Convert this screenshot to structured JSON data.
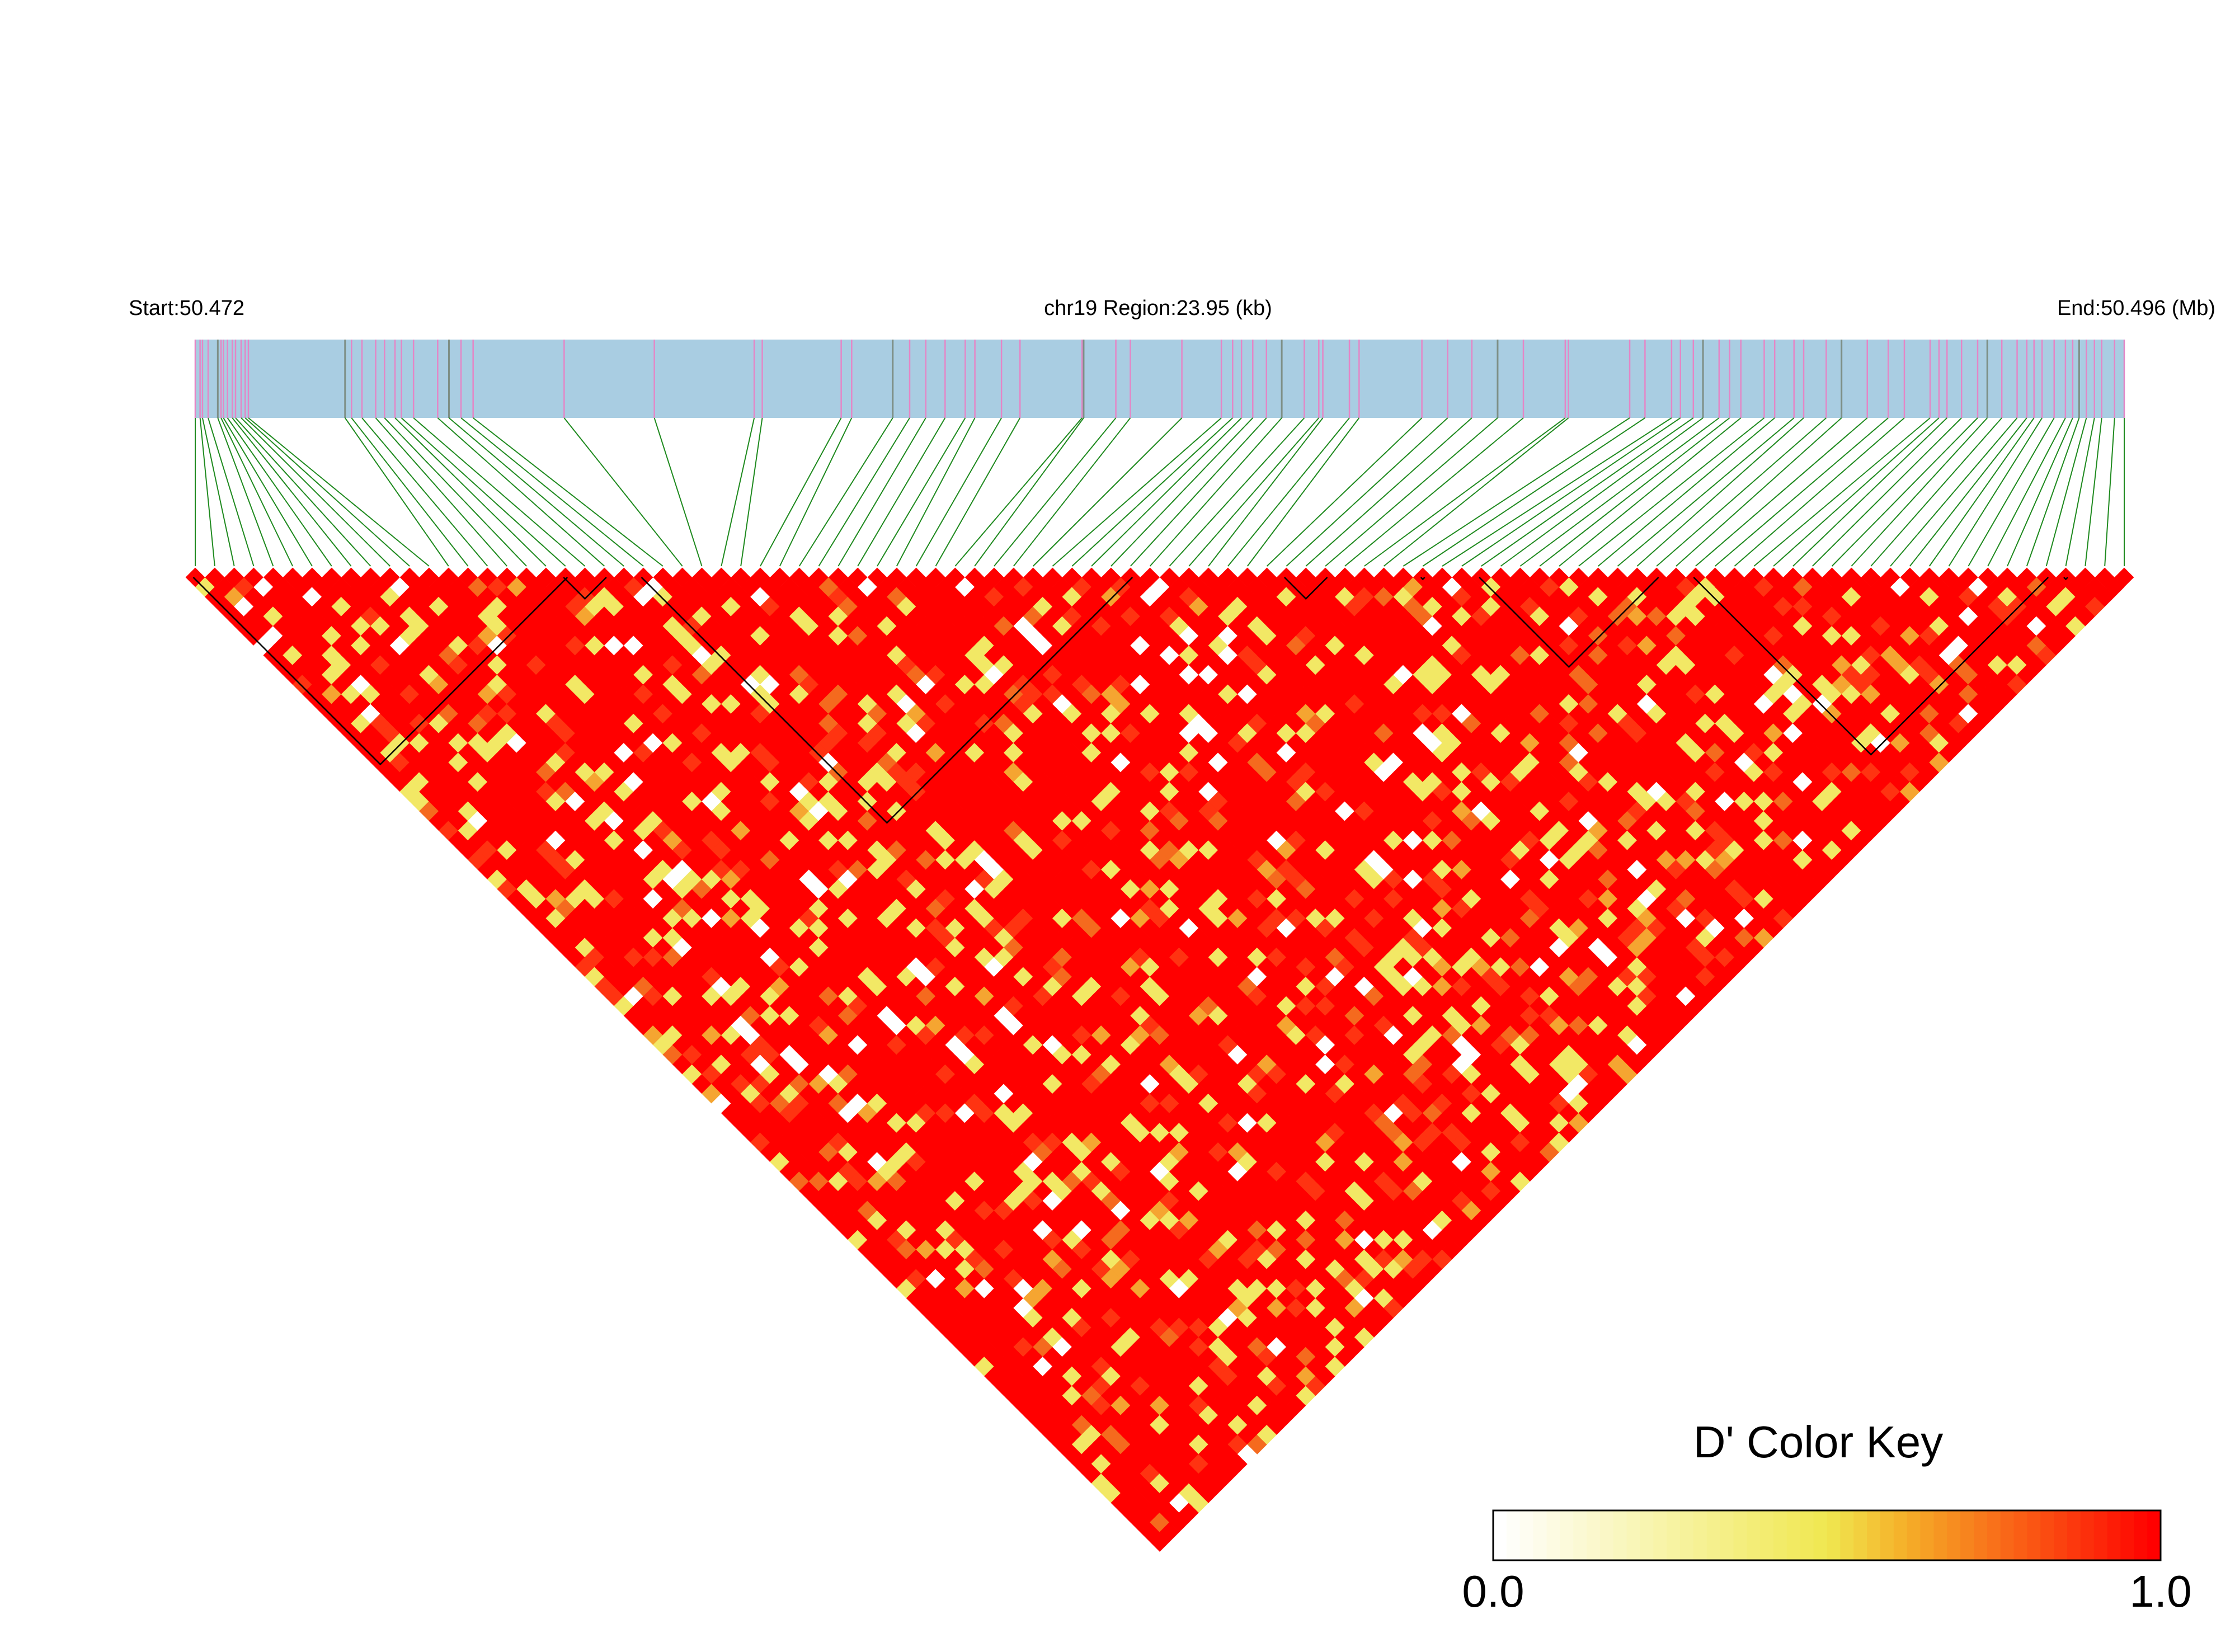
{
  "header": {
    "start_label": "Start:50.472",
    "region_label": "chr19 Region:23.95 (kb)",
    "end_label": "End:50.496 (Mb)"
  },
  "chart_data": {
    "type": "heatmap",
    "subtype": "linkage-disequilibrium-triangle",
    "title": "",
    "chromosome": "chr19",
    "region_start_mb": 50.472,
    "region_end_mb": 50.496,
    "region_length_kb": 23.95,
    "metric": "D'",
    "n_snps": 100,
    "snp_positions_kb": [
      0.0,
      0.06,
      0.09,
      0.16,
      0.28,
      0.32,
      0.35,
      0.4,
      0.46,
      0.5,
      0.57,
      0.62,
      0.66,
      1.86,
      1.94,
      2.07,
      2.24,
      2.35,
      2.48,
      2.56,
      2.71,
      3.01,
      3.15,
      3.3,
      3.45,
      4.58,
      5.7,
      6.94,
      7.04,
      8.02,
      8.15,
      8.66,
      8.87,
      9.07,
      9.31,
      9.56,
      9.68,
      10.01,
      10.24,
      11.01,
      11.03,
      11.43,
      11.61,
      12.25,
      12.74,
      12.88,
      12.99,
      13.13,
      13.3,
      13.49,
      13.77,
      13.95,
      14.0,
      14.33,
      14.45,
      15.23,
      15.55,
      15.85,
      16.17,
      16.49,
      17.01,
      17.05,
      17.81,
      18.0,
      18.33,
      18.44,
      18.6,
      18.72,
      18.92,
      19.05,
      19.19,
      19.48,
      19.61,
      19.85,
      19.97,
      20.25,
      20.44,
      20.76,
      21.02,
      21.22,
      21.54,
      21.65,
      21.75,
      21.93,
      22.13,
      22.25,
      22.43,
      22.62,
      22.74,
      22.83,
      22.93,
      23.08,
      23.22,
      23.31,
      23.39,
      23.48,
      23.58,
      23.67,
      23.83,
      23.95
    ],
    "haplotype_blocks_snp_index": [
      [
        0,
        19
      ],
      [
        19,
        21
      ],
      [
        23,
        48
      ],
      [
        56,
        58
      ],
      [
        63,
        63
      ],
      [
        66,
        75
      ],
      [
        77,
        95
      ],
      [
        96,
        96
      ]
    ],
    "dprime_summary": {
      "range": [
        0.0,
        1.0
      ],
      "predominant_value": 1.0,
      "note": "most pairwise D' values are 1.0 (red); scattered pairs between 0.3 and 0.85 (yellow/orange) and a few near 0 (white)"
    },
    "legend": {
      "title": "D' Color Key",
      "min_label": "0.0",
      "max_label": "1.0",
      "colors": [
        "#ffffff",
        "#f0e850",
        "#ffff00",
        "#f5a020",
        "#ff0000"
      ]
    },
    "colors": {
      "track_fill": "#a9cde2",
      "marker_pink": "#e486c6",
      "marker_gray": "#7e8f86",
      "connector_green": "#1f8a1f",
      "high_ld": "#ff0000",
      "block_outline": "#000000"
    }
  }
}
